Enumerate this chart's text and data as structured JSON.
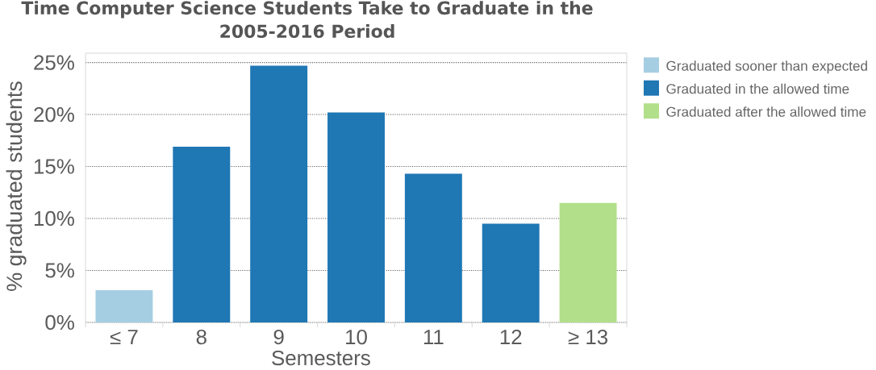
{
  "chart_data": {
    "type": "bar",
    "title": "Time Computer Science Students Take to Graduate in the 2005-2016 Period",
    "xlabel": "Semesters",
    "ylabel": "% graduated students",
    "categories": [
      "≤ 7",
      "8",
      "9",
      "10",
      "11",
      "12",
      "≥ 13"
    ],
    "series": [
      {
        "name": "Graduated sooner than expected",
        "color": "#a6cee3",
        "values": [
          3.1,
          null,
          null,
          null,
          null,
          null,
          null
        ]
      },
      {
        "name": "Graduated in the allowed time",
        "color": "#1f77b4",
        "values": [
          null,
          16.9,
          24.7,
          20.2,
          14.3,
          9.5,
          null
        ]
      },
      {
        "name": "Graduated after the allowed time",
        "color": "#b2df8a",
        "values": [
          null,
          null,
          null,
          null,
          null,
          null,
          11.5
        ]
      }
    ],
    "ylim": [
      0,
      25.9
    ],
    "yticks": [
      {
        "value": 0,
        "label": "0%"
      },
      {
        "value": 5,
        "label": "5%"
      },
      {
        "value": 10,
        "label": "10%"
      },
      {
        "value": 15,
        "label": "15%"
      },
      {
        "value": 20,
        "label": "20%"
      },
      {
        "value": 25,
        "label": "25%"
      }
    ],
    "grid": "y",
    "legend": "right"
  }
}
